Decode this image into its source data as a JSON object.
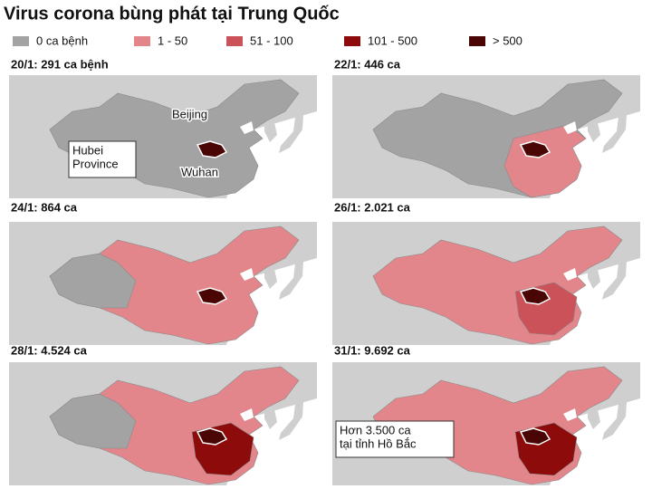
{
  "title": "Virus corona bùng phát tại Trung Quốc",
  "legend": [
    {
      "label": "0 ca bệnh",
      "color": "#a3a3a3"
    },
    {
      "label": "1 - 50",
      "color": "#e3868b"
    },
    {
      "label": "51 - 100",
      "color": "#cc525a"
    },
    {
      "label": "101 - 500",
      "color": "#8e0b0b"
    },
    {
      "label": "> 500",
      "color": "#4a0505"
    }
  ],
  "panels": [
    {
      "label": "20/1: 291 ca bệnh",
      "annotations": [
        {
          "lines": [
            "Beijing"
          ]
        },
        {
          "lines": [
            "Hubei",
            "Province"
          ]
        },
        {
          "lines": [
            "Wuhan"
          ]
        }
      ]
    },
    {
      "label": "22/1: 446 ca"
    },
    {
      "label": "24/1: 864 ca"
    },
    {
      "label": "26/1: 2.021 ca"
    },
    {
      "label": "28/1: 4.524 ca"
    },
    {
      "label": "31/1: 9.692 ca",
      "annotations": [
        {
          "lines": [
            "Hơn 3.500 ca",
            "tại tỉnh Hồ Bắc"
          ]
        }
      ]
    }
  ]
}
